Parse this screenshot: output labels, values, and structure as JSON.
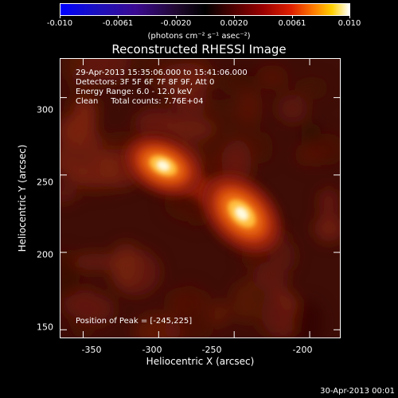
{
  "colorbar": {
    "tick_labels": [
      "-0.010",
      "-0.0061",
      "-0.0020",
      "0.0020",
      "0.0061",
      "0.010"
    ],
    "units": "(photons cm⁻² s⁻¹ asec⁻²)",
    "range": [
      -0.01,
      0.01
    ],
    "colormap": "rhessi-blue-to-white"
  },
  "title": "Reconstructed RHESSI Image",
  "info": {
    "time_range": "29-Apr-2013 15:35:06.000 to 15:41:06.000",
    "detectors": "Detectors: 3F 5F 6F 7F 8F 9F, Att 0",
    "energy_range": "Energy Range: 6.0 - 12.0 keV",
    "clean_total": "Clean     Total counts: 7.76E+04",
    "peak_position": "Position of Peak = [-245,225]"
  },
  "axes": {
    "xlabel": "Heliocentric X (arcsec)",
    "ylabel": "Heliocentric Y (arcsec)",
    "xlim": [
      -365,
      -180
    ],
    "ylim": [
      145,
      325
    ],
    "x_ticks": [
      "-350",
      "-300",
      "-250",
      "-200"
    ],
    "y_ticks": [
      "150",
      "200",
      "250",
      "300"
    ]
  },
  "sources": [
    {
      "x": -297,
      "y": 256,
      "peak_brightness": 0.85
    },
    {
      "x": -245,
      "y": 225,
      "peak_brightness": 1.0
    }
  ],
  "footer": {
    "timestamp": "30-Apr-2013 00:01"
  }
}
